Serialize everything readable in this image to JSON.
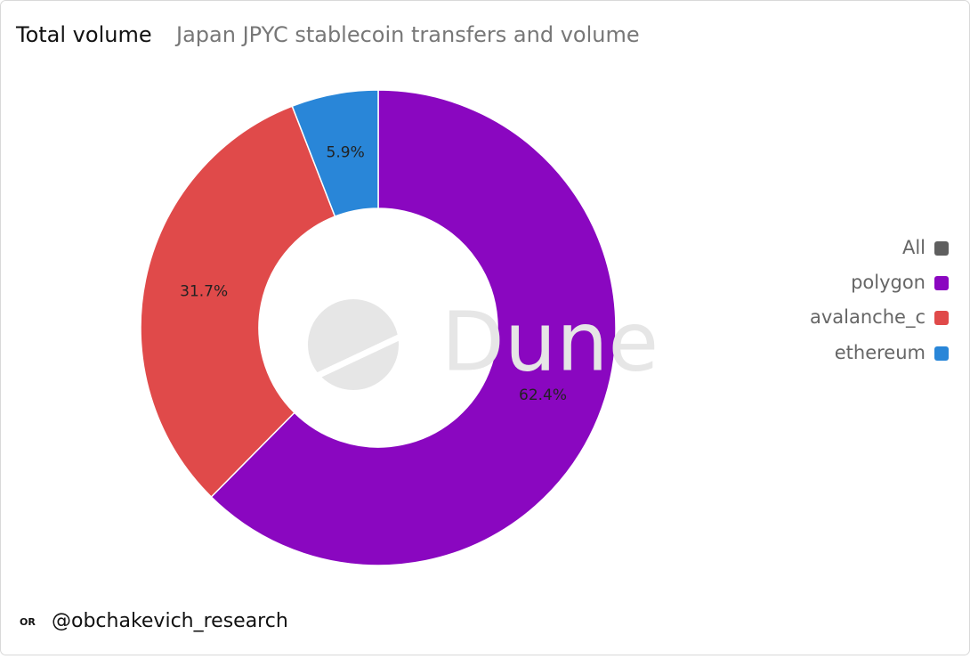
{
  "chart_data": {
    "type": "donut",
    "title": "Total volume",
    "subtitle": "Japan JPYC stablecoin transfers and volume",
    "categories": [
      "polygon",
      "avalanche_c",
      "ethereum"
    ],
    "values": [
      62.4,
      31.7,
      5.9
    ],
    "value_labels": [
      "62.4%",
      "31.7%",
      "5.9%"
    ],
    "colors": [
      "#8a07c0",
      "#e04a4a",
      "#2986d8"
    ],
    "legend_all": {
      "label": "All",
      "color": "#5f5f5f"
    },
    "legend_position": "right",
    "watermark": "Dune",
    "footer_logo": "OR",
    "footer": "@obchakevich_research"
  }
}
